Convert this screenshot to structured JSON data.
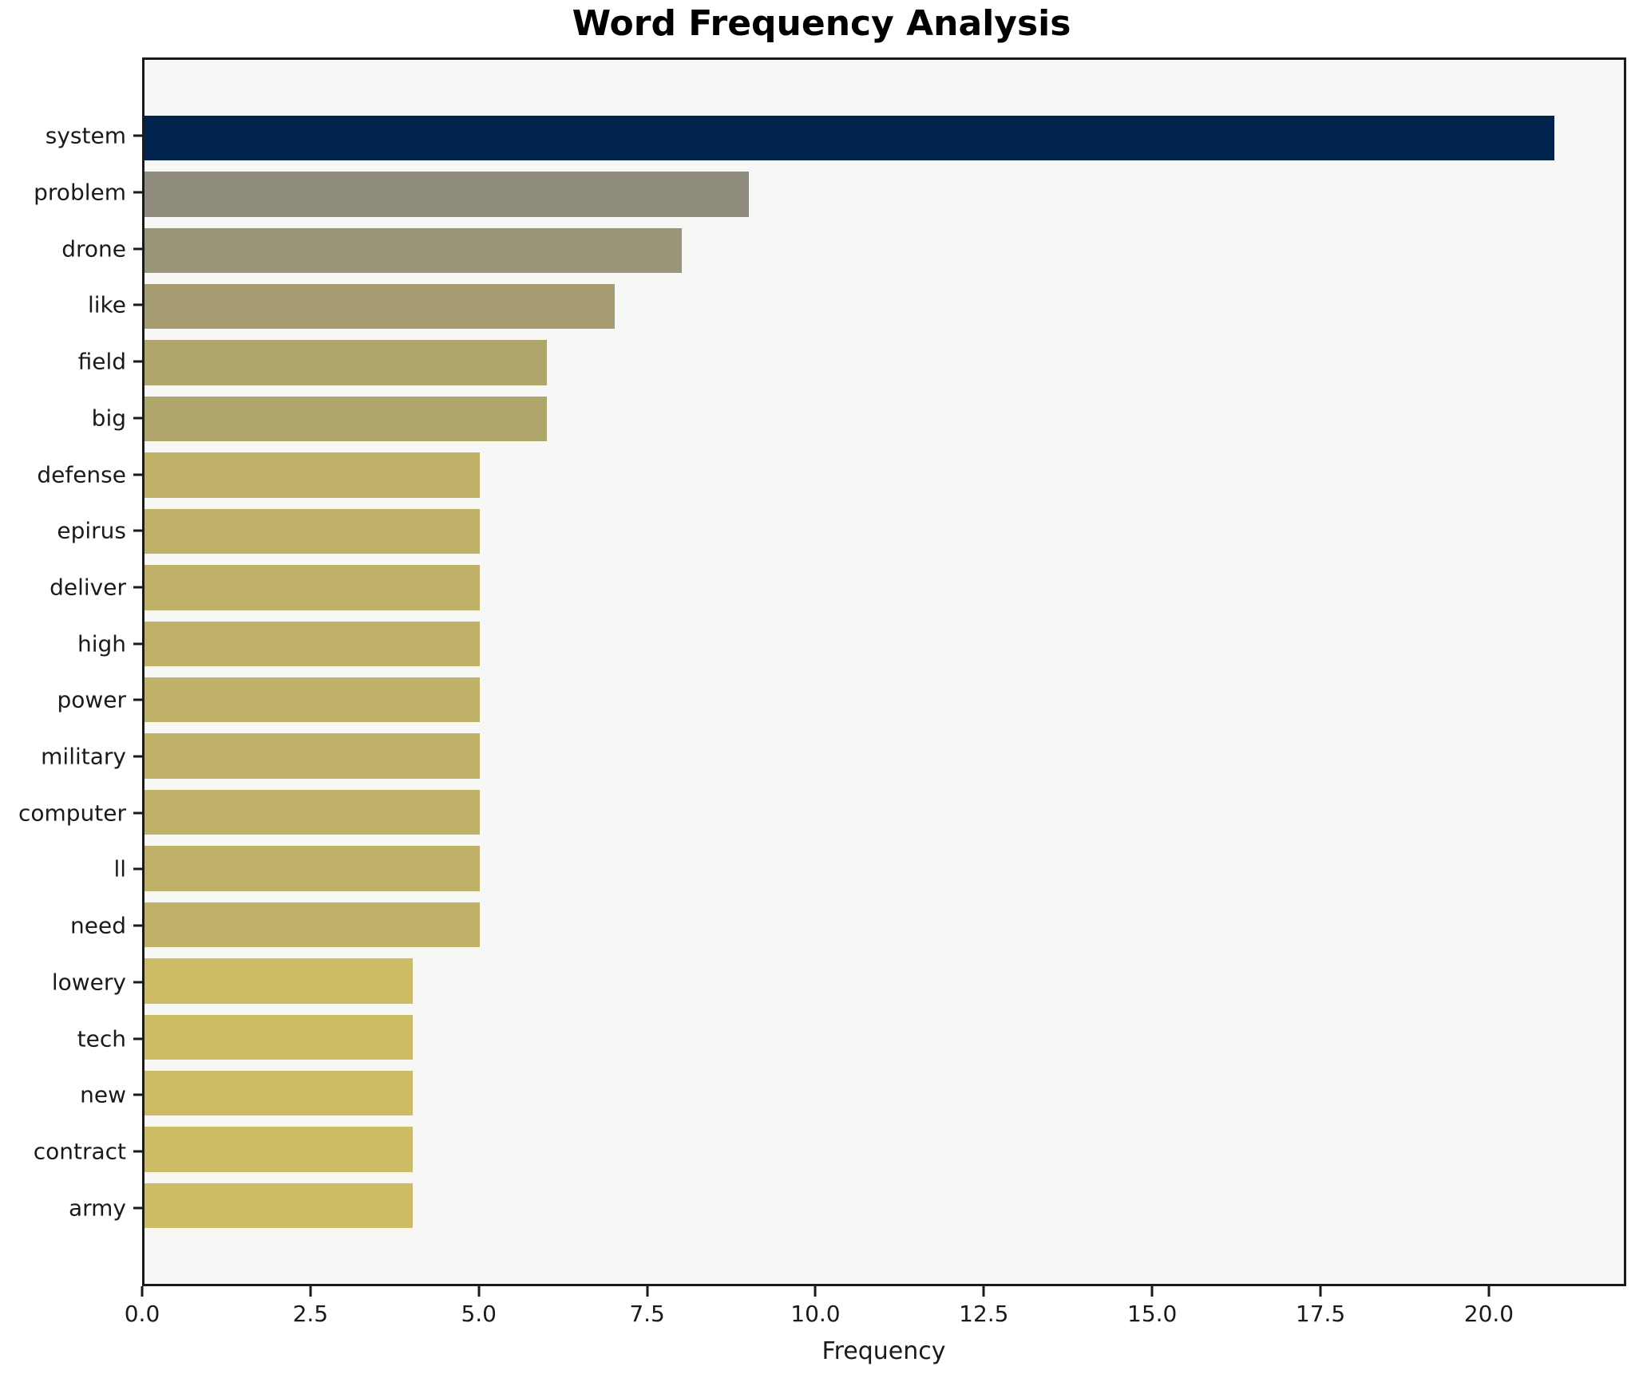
{
  "chart_data": {
    "type": "bar",
    "orientation": "horizontal",
    "title": "Word Frequency Analysis",
    "xlabel": "Frequency",
    "ylabel": "",
    "categories": [
      "system",
      "problem",
      "drone",
      "like",
      "field",
      "big",
      "defense",
      "epirus",
      "deliver",
      "high",
      "power",
      "military",
      "computer",
      "ll",
      "need",
      "lowery",
      "tech",
      "new",
      "contract",
      "army"
    ],
    "values": [
      21,
      9,
      8,
      7,
      6,
      6,
      5,
      5,
      5,
      5,
      5,
      5,
      5,
      5,
      5,
      4,
      4,
      4,
      4,
      4
    ],
    "bar_colors": [
      "#02234e",
      "#8f8b7d",
      "#999579",
      "#a59d71",
      "#aea66b",
      "#aea66b",
      "#bfb168",
      "#bfb168",
      "#bfb168",
      "#bfb168",
      "#bfb168",
      "#bfb168",
      "#bfb168",
      "#bfb168",
      "#bfb168",
      "#ccbc63",
      "#ccbc63",
      "#ccbc63",
      "#ccbc63",
      "#ccbc63"
    ],
    "xlim": [
      0,
      22.04
    ],
    "x_ticks": [
      {
        "value": 0,
        "label": "0.0"
      },
      {
        "value": 2.5,
        "label": "2.5"
      },
      {
        "value": 5,
        "label": "5.0"
      },
      {
        "value": 7.5,
        "label": "7.5"
      },
      {
        "value": 10,
        "label": "10.0"
      },
      {
        "value": 12.5,
        "label": "12.5"
      },
      {
        "value": 15,
        "label": "15.0"
      },
      {
        "value": 17.5,
        "label": "17.5"
      },
      {
        "value": 20,
        "label": "20.0"
      }
    ],
    "grid": false,
    "legend": null,
    "bar_height_units": 0.8,
    "y_span_units": 21.78,
    "y_top_pad_units": 1.39,
    "colors": {
      "plot_background": "#f7f7f5",
      "figure_background": "#ffffff",
      "spine": "#1a1a1a",
      "text": "#1a1a1a"
    }
  }
}
